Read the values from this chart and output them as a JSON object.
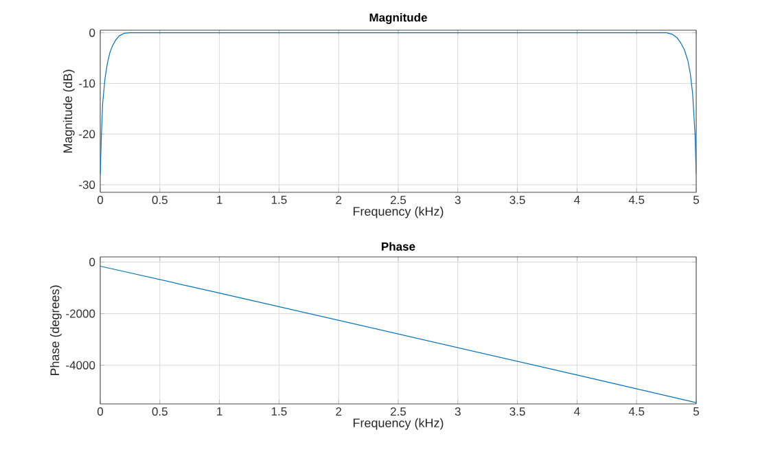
{
  "chart_data": [
    {
      "type": "line",
      "title": "Magnitude",
      "xlabel": "Frequency (kHz)",
      "ylabel": "Magnitude (dB)",
      "xlim": [
        0,
        5
      ],
      "ylim": [
        -31.5,
        0.5
      ],
      "xticks": [
        0,
        0.5,
        1,
        1.5,
        2,
        2.5,
        3,
        3.5,
        4,
        4.5,
        5
      ],
      "yticks": [
        -30,
        -20,
        -10,
        0
      ],
      "grid": true,
      "series": [
        {
          "color": "#0072bd",
          "x": [
            0,
            0.01,
            0.02,
            0.04,
            0.06,
            0.08,
            0.1,
            0.13,
            0.16,
            0.2,
            0.25,
            0.5,
            1,
            1.5,
            2,
            2.5,
            3,
            3.5,
            4,
            4.5,
            4.75,
            4.8,
            4.84,
            4.87,
            4.9,
            4.93,
            4.95,
            4.97,
            4.99,
            5
          ],
          "values": [
            -28,
            -20,
            -14,
            -9,
            -6,
            -4,
            -2.7,
            -1.4,
            -0.6,
            -0.1,
            0,
            0,
            0,
            0,
            0,
            0,
            0,
            0,
            0,
            0,
            0,
            -0.3,
            -1,
            -2,
            -3.3,
            -5.5,
            -8,
            -12,
            -20,
            -28
          ]
        }
      ]
    },
    {
      "type": "line",
      "title": "Phase",
      "xlabel": "Frequency (kHz)",
      "ylabel": "Phase (degrees)",
      "xlim": [
        0,
        5
      ],
      "ylim": [
        -5500,
        200
      ],
      "xticks": [
        0,
        0.5,
        1,
        1.5,
        2,
        2.5,
        3,
        3.5,
        4,
        4.5,
        5
      ],
      "yticks": [
        -4000,
        -2000,
        0
      ],
      "grid": true,
      "series": [
        {
          "color": "#0072bd",
          "x": [
            0,
            1,
            2,
            3,
            4,
            5
          ],
          "values": [
            -160,
            -1200,
            -2260,
            -3320,
            -4380,
            -5450
          ]
        }
      ]
    }
  ]
}
